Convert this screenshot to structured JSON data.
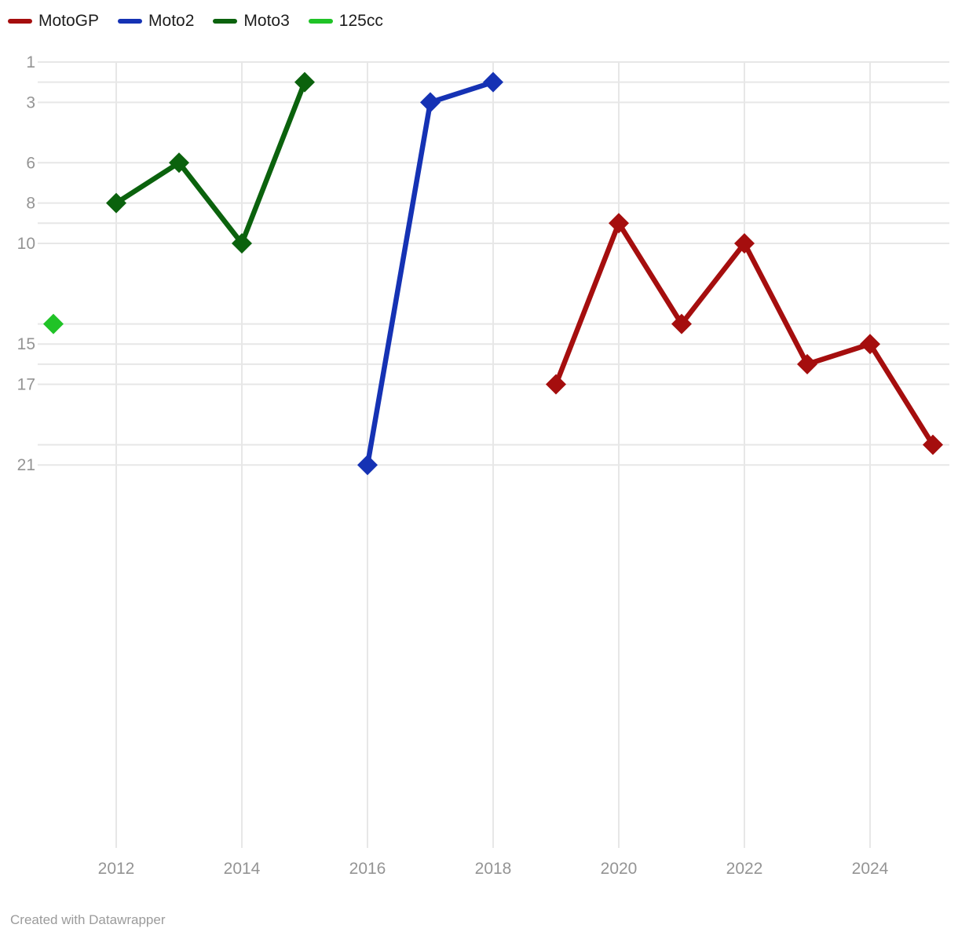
{
  "attribution": "Created with Datawrapper",
  "style": {
    "background": "#ffffff",
    "grid_color": "#e7e7e7",
    "axis_text_color": "#949494",
    "legend_text_color": "#1d1d1d",
    "footer_text_color": "#9b9b9b"
  },
  "legend": {
    "items": [
      {
        "label": "MotoGP",
        "color": "#a50e0e"
      },
      {
        "label": "Moto2",
        "color": "#1532b4"
      },
      {
        "label": "Moto3",
        "color": "#0b620d"
      },
      {
        "label": "125cc",
        "color": "#20c327"
      }
    ]
  },
  "chart_data": {
    "type": "line",
    "title": "",
    "xlabel": "",
    "ylabel": "",
    "grid": true,
    "legend_position": "top-left",
    "marker": "diamond",
    "y_axis": {
      "inverted": true,
      "range": [
        1,
        40
      ],
      "tick_labels": [
        "1",
        "3",
        "6",
        "8",
        "10",
        "15",
        "17",
        "21"
      ],
      "tick_values": [
        1,
        3,
        6,
        8,
        10,
        15,
        17,
        21
      ],
      "gridline_values": [
        1,
        2,
        3,
        6,
        8,
        9,
        10,
        14,
        15,
        16,
        17,
        20,
        21
      ]
    },
    "x_axis": {
      "range": [
        2010.9,
        2025.2
      ],
      "tick_labels": [
        "2012",
        "2014",
        "2016",
        "2018",
        "2020",
        "2022",
        "2024"
      ],
      "tick_values": [
        2012,
        2014,
        2016,
        2018,
        2020,
        2022,
        2024
      ]
    },
    "series": [
      {
        "name": "MotoGP",
        "color": "#a50e0e",
        "points": [
          {
            "x": 2019,
            "y": 17
          },
          {
            "x": 2020,
            "y": 9
          },
          {
            "x": 2021,
            "y": 14
          },
          {
            "x": 2022,
            "y": 10
          },
          {
            "x": 2023,
            "y": 16
          },
          {
            "x": 2024,
            "y": 15
          },
          {
            "x": 2025,
            "y": 20
          }
        ]
      },
      {
        "name": "Moto2",
        "color": "#1532b4",
        "points": [
          {
            "x": 2016,
            "y": 21
          },
          {
            "x": 2017,
            "y": 3
          },
          {
            "x": 2018,
            "y": 2
          }
        ]
      },
      {
        "name": "Moto3",
        "color": "#0b620d",
        "points": [
          {
            "x": 2012,
            "y": 8
          },
          {
            "x": 2013,
            "y": 6
          },
          {
            "x": 2014,
            "y": 10
          },
          {
            "x": 2015,
            "y": 2
          }
        ]
      },
      {
        "name": "125cc",
        "color": "#20c327",
        "points": [
          {
            "x": 2011,
            "y": 14
          }
        ]
      }
    ]
  }
}
